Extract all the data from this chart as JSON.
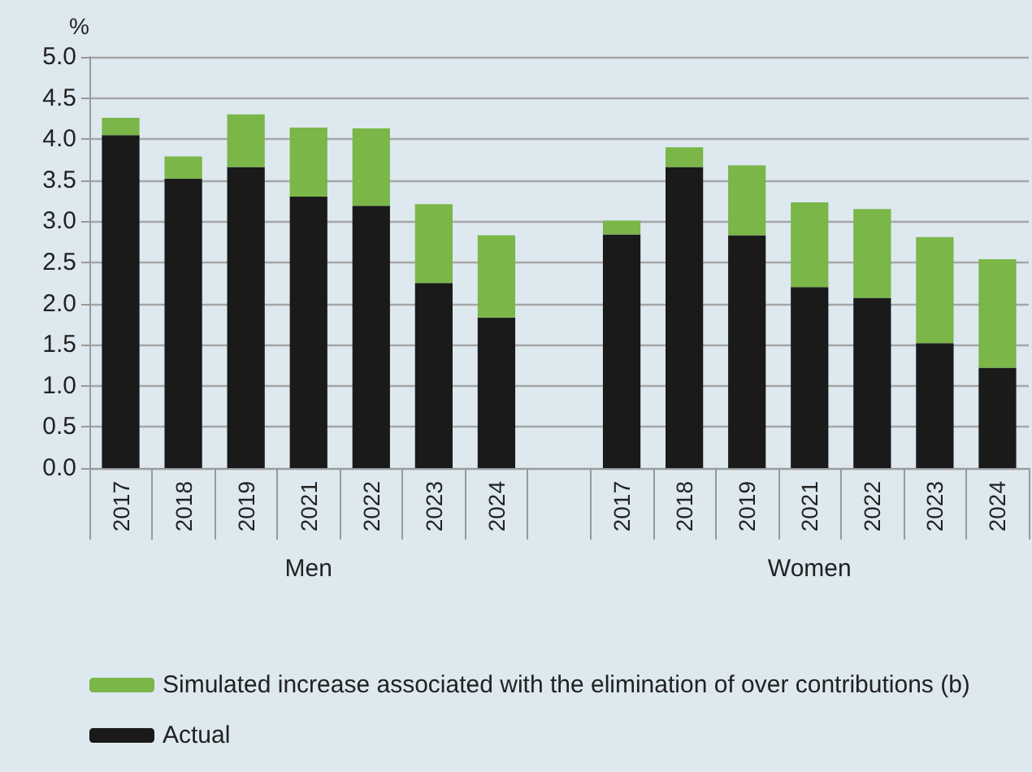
{
  "chart_data": {
    "type": "bar",
    "stacked": true,
    "ylabel": "%",
    "categories": [
      "2017",
      "2018",
      "2019",
      "2021",
      "2022",
      "2023",
      "2024",
      null,
      "2017",
      "2018",
      "2019",
      "2021",
      "2022",
      "2023",
      "2024"
    ],
    "series": [
      {
        "name": "Actual",
        "color": "#1a1a1a",
        "values": [
          4.05,
          3.52,
          3.66,
          3.3,
          3.19,
          2.25,
          1.83,
          null,
          2.84,
          3.66,
          2.83,
          2.2,
          2.07,
          1.52,
          1.22
        ]
      },
      {
        "name": "Simulated increase associated with the elimination of over contributions (b)",
        "color": "#7ab648",
        "values": [
          0.21,
          0.27,
          0.64,
          0.84,
          0.94,
          0.96,
          1.0,
          null,
          0.17,
          0.24,
          0.85,
          1.03,
          1.08,
          1.29,
          1.32
        ]
      }
    ],
    "ylim": [
      0,
      5
    ],
    "yticks": [
      {
        "value": 0,
        "label": "0.0"
      },
      {
        "value": 0.5,
        "label": "0.5"
      },
      {
        "value": 1,
        "label": "1.0"
      },
      {
        "value": 1.5,
        "label": "1.5"
      },
      {
        "value": 2,
        "label": "2.0"
      },
      {
        "value": 2.5,
        "label": "2.5"
      },
      {
        "value": 3,
        "label": "3.0"
      },
      {
        "value": 3.5,
        "label": "3.5"
      },
      {
        "value": 4,
        "label": "4.0"
      },
      {
        "value": 4.5,
        "label": "4.5"
      },
      {
        "value": 5,
        "label": "5.0"
      }
    ],
    "grid": "y",
    "legend": "bottom left",
    "annotations": [
      "Men",
      "Women"
    ]
  }
}
